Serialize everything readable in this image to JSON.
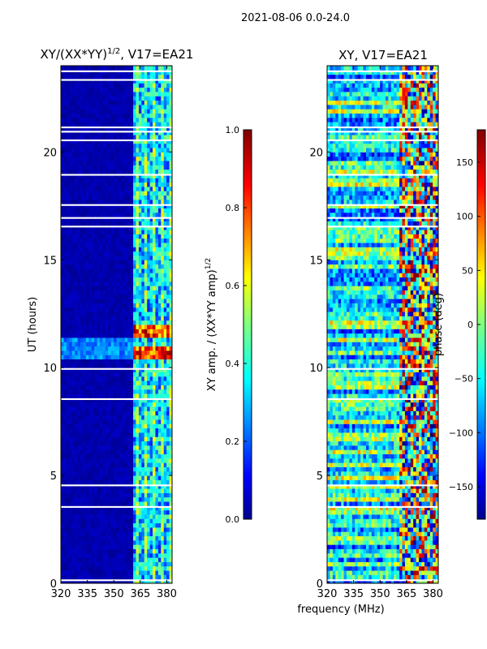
{
  "suptitle": "2021-08-06 0.0-24.0",
  "xlabel_shared": "frequency (MHz)",
  "colors": {
    "background_amp": "#00008f",
    "gap": "#ffffff"
  },
  "chart_data": [
    {
      "type": "heatmap",
      "title_main": "XY/(XX*YY)",
      "title_sup": "1/2",
      "title_rest": ", V17=EA21",
      "xlabel": "",
      "ylabel": "UT (hours)",
      "xlim": [
        320,
        383
      ],
      "ylim": [
        0,
        24
      ],
      "xticks": [
        320,
        335,
        350,
        365,
        380
      ],
      "yticks": [
        0,
        5,
        10,
        15,
        20
      ],
      "active_band_mhz": [
        360,
        383
      ],
      "hot_bands_hours": [
        [
          10.5,
          11.0
        ],
        [
          11.5,
          12.0
        ]
      ],
      "colorbar": {
        "label": "XY amp. / (XX*YY amp)",
        "label_sup": "1/2",
        "range": [
          0.0,
          1.0
        ],
        "ticks": [
          "0.0",
          "0.2",
          "0.4",
          "0.6",
          "0.8",
          "1.0"
        ]
      }
    },
    {
      "type": "heatmap",
      "title_main": "XY, V17=EA21",
      "xlabel": "",
      "ylabel": "",
      "xlim": [
        320,
        383
      ],
      "ylim": [
        0,
        24
      ],
      "xticks": [
        320,
        335,
        350,
        365,
        380
      ],
      "yticks": [
        0,
        5,
        10,
        15,
        20
      ],
      "colorbar": {
        "label": "phase (deg)",
        "range": [
          -180,
          180
        ],
        "ticks": [
          "150",
          "100",
          "50",
          "0",
          "−50",
          "−100",
          "−150"
        ]
      }
    }
  ]
}
